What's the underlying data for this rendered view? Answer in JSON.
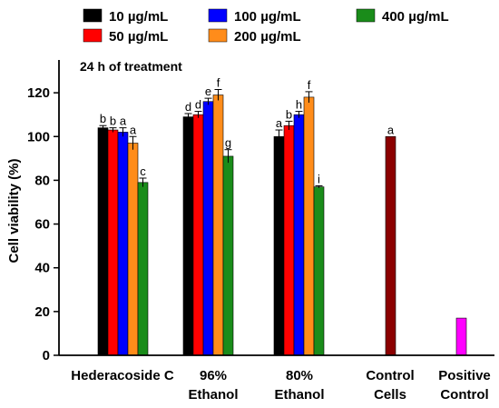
{
  "chart_data": {
    "type": "bar",
    "annotation": "24 h of treatment",
    "ylabel": "Cell viability (%)",
    "xlabel": "",
    "ylim": [
      0,
      135
    ],
    "yticks": [
      0,
      20,
      40,
      60,
      80,
      100,
      120
    ],
    "grid": false,
    "legend_position": "top",
    "series": [
      {
        "name": "10 µg/mL",
        "color": "#000000"
      },
      {
        "name": "50 µg/mL",
        "color": "#ff0000"
      },
      {
        "name": "100 µg/mL",
        "color": "#0000ff"
      },
      {
        "name": "200 µg/mL",
        "color": "#ff8c1a"
      },
      {
        "name": "400 µg/mL",
        "color": "#1a8c1a"
      }
    ],
    "groups": [
      {
        "label_lines": [
          "Hederacoside C"
        ],
        "bars": [
          {
            "series": 0,
            "value": 104,
            "error": 1,
            "sig": "b"
          },
          {
            "series": 1,
            "value": 103,
            "error": 1,
            "sig": "b"
          },
          {
            "series": 2,
            "value": 102,
            "error": 2,
            "sig": "a"
          },
          {
            "series": 3,
            "value": 97,
            "error": 3,
            "sig": "a"
          },
          {
            "series": 4,
            "value": 79,
            "error": 2,
            "sig": "c"
          }
        ]
      },
      {
        "label_lines": [
          "96%",
          "Ethanol"
        ],
        "bars": [
          {
            "series": 0,
            "value": 109,
            "error": 1.5,
            "sig": "d"
          },
          {
            "series": 1,
            "value": 110,
            "error": 1.5,
            "sig": "d"
          },
          {
            "series": 2,
            "value": 116,
            "error": 1.5,
            "sig": "e"
          },
          {
            "series": 3,
            "value": 119,
            "error": 2.5,
            "sig": "f"
          },
          {
            "series": 4,
            "value": 91,
            "error": 3,
            "sig": "g"
          }
        ]
      },
      {
        "label_lines": [
          "80%",
          "Ethanol"
        ],
        "bars": [
          {
            "series": 0,
            "value": 100,
            "error": 3,
            "sig": "a"
          },
          {
            "series": 1,
            "value": 105,
            "error": 2,
            "sig": "b"
          },
          {
            "series": 2,
            "value": 110,
            "error": 1.5,
            "sig": "h"
          },
          {
            "series": 3,
            "value": 118,
            "error": 2.5,
            "sig": "f"
          },
          {
            "series": 4,
            "value": 77,
            "error": 0.5,
            "sig": "i"
          }
        ]
      },
      {
        "label_lines": [
          "Control",
          "Cells"
        ],
        "bars": [
          {
            "color": "#8b0000",
            "value": 100,
            "error": 0,
            "sig": "a"
          }
        ]
      },
      {
        "label_lines": [
          "Positive",
          "Control"
        ],
        "bars": [
          {
            "color": "#ff00ff",
            "value": 17,
            "error": 0,
            "sig": ""
          }
        ]
      }
    ]
  }
}
